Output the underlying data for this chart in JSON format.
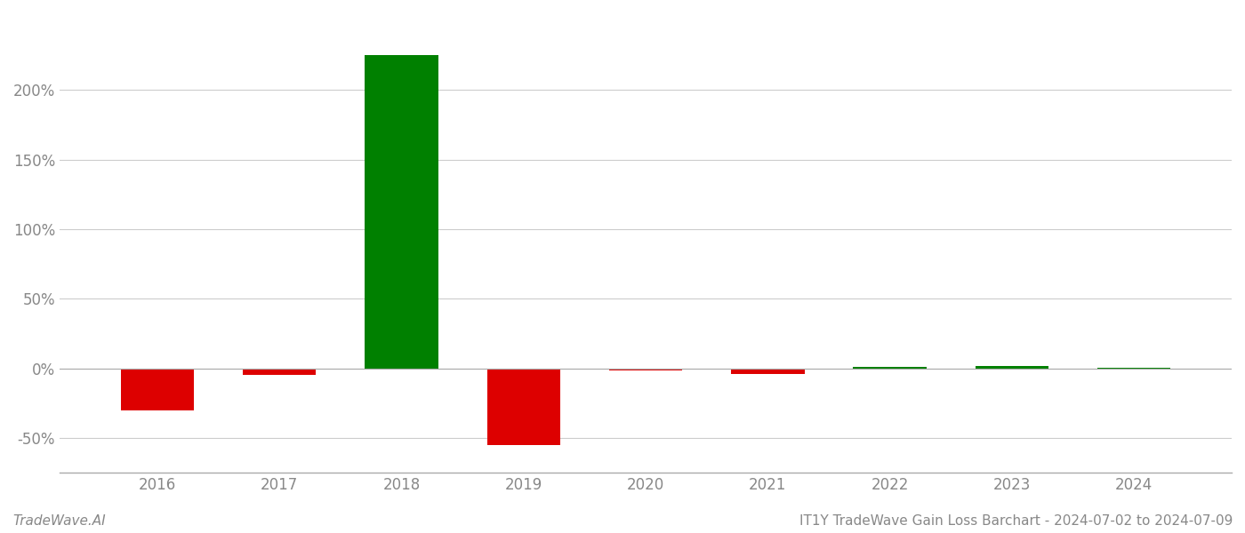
{
  "years": [
    2016,
    2017,
    2018,
    2019,
    2020,
    2021,
    2022,
    2023,
    2024
  ],
  "values": [
    -0.3,
    -0.05,
    2.25,
    -0.55,
    -0.015,
    -0.04,
    0.012,
    0.015,
    0.002
  ],
  "bar_colors": [
    "#dd0000",
    "#dd0000",
    "#008000",
    "#dd0000",
    "#dd0000",
    "#dd0000",
    "#008000",
    "#008000",
    "#008000"
  ],
  "ylim": [
    -0.75,
    2.55
  ],
  "yticks": [
    -0.5,
    0.0,
    0.5,
    1.0,
    1.5,
    2.0
  ],
  "ytick_labels": [
    "-50%",
    "0%",
    "50%",
    "100%",
    "150%",
    "200%"
  ],
  "bar_width": 0.6,
  "text_color": "#888888",
  "footer_left": "TradeWave.AI",
  "footer_right": "IT1Y TradeWave Gain Loss Barchart - 2024-07-02 to 2024-07-09",
  "background_color": "#ffffff",
  "grid_color": "#cccccc",
  "footer_color": "#888888",
  "footer_fontsize": 11
}
